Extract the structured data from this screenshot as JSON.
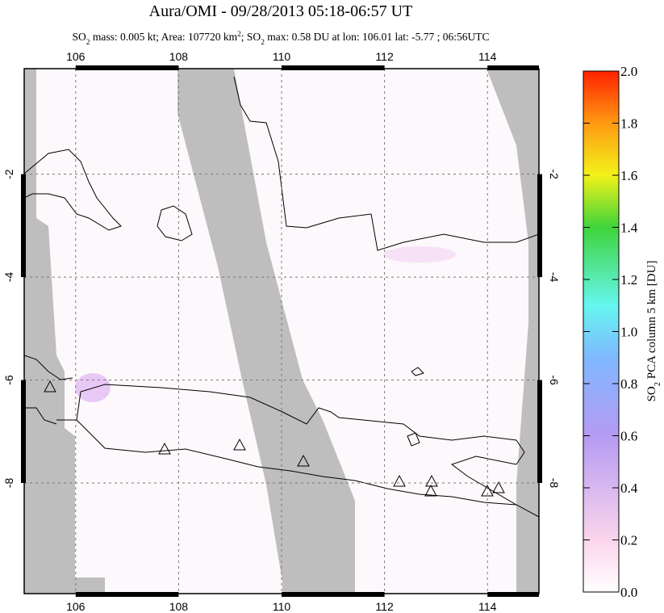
{
  "chart_data": {
    "type": "map",
    "title": "Aura/OMI - 09/28/2013 05:18-06:57 UT",
    "subtitle": [
      {
        "text": "SO"
      },
      {
        "text": "2",
        "shift": "sub"
      },
      {
        "text": " mass: 0.005 kt; Area: 107720 km"
      },
      {
        "text": "2",
        "shift": "super"
      },
      {
        "text": "; SO"
      },
      {
        "text": "2",
        "shift": "sub"
      },
      {
        "text": " max: 0.58 DU at lon: 106.01 lat: -5.77 ; 06:56UTC"
      }
    ],
    "xlim": [
      105,
      115
    ],
    "ylim": [
      -10.15,
      0.05
    ],
    "xticks": [
      106,
      108,
      110,
      112,
      114
    ],
    "yticks": [
      -2,
      -4,
      -6,
      -8
    ],
    "colorbar": {
      "label": [
        {
          "text": "SO"
        },
        {
          "text": "2",
          "shift": "sub"
        },
        {
          "text": " PCA column 5 km [DU]"
        }
      ],
      "lim": [
        0,
        2
      ],
      "ticks": [
        {
          "value": 0,
          "label": "0.0"
        },
        {
          "value": 0.2,
          "label": "0.2"
        },
        {
          "value": 0.4,
          "label": "0.4"
        },
        {
          "value": 0.6,
          "label": "0.6"
        },
        {
          "value": 0.8,
          "label": "0.8"
        },
        {
          "value": 1,
          "label": "1.0"
        },
        {
          "value": 1.2,
          "label": "1.2"
        },
        {
          "value": 1.4,
          "label": "1.4"
        },
        {
          "value": 1.6,
          "label": "1.6"
        },
        {
          "value": 1.8,
          "label": "1.8"
        },
        {
          "value": 2,
          "label": "2.0"
        }
      ]
    }
  }
}
